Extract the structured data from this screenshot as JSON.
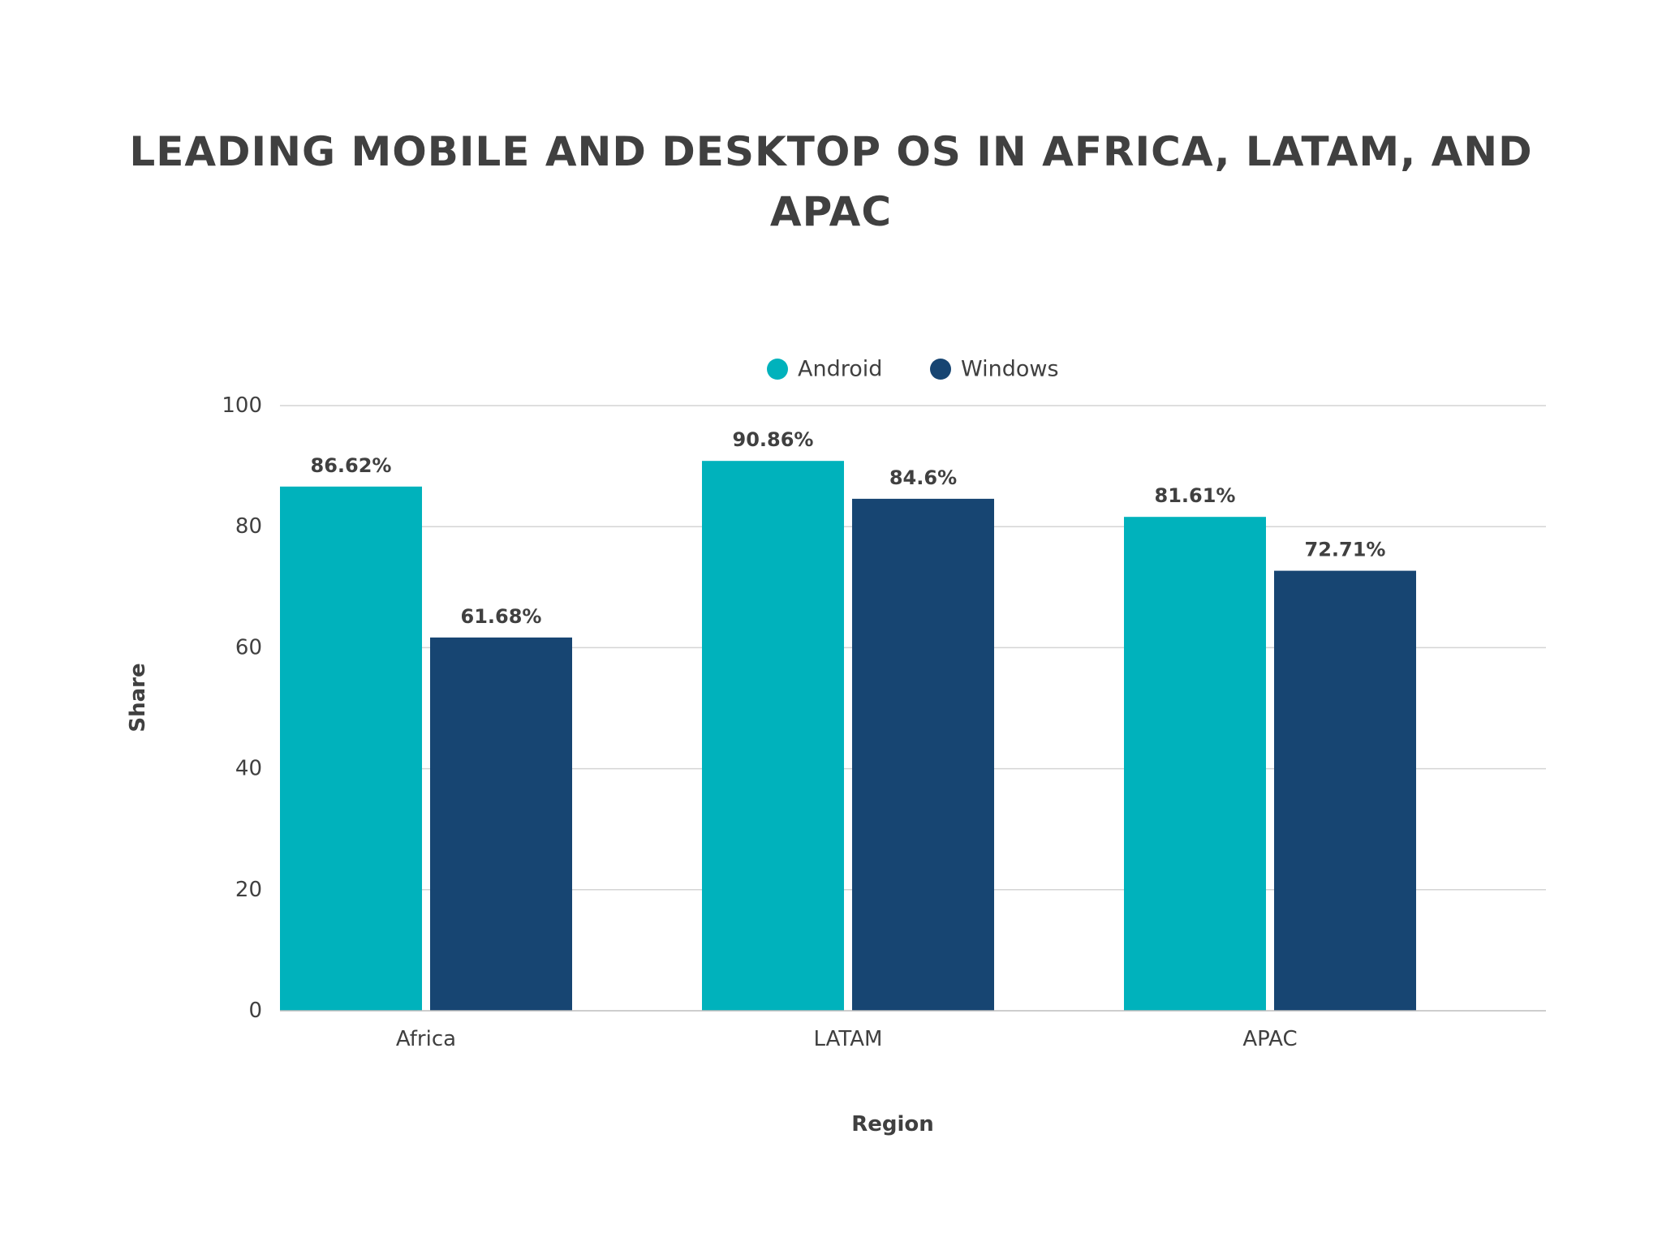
{
  "chart_data": {
    "type": "bar",
    "title_lines": [
      "LEADING MOBILE AND DESKTOP OS IN AFRICA, LATAM, AND",
      "APAC"
    ],
    "xlabel": "Region",
    "ylabel": "Share",
    "categories": [
      "Africa",
      "LATAM",
      "APAC"
    ],
    "series": [
      {
        "name": "Android",
        "color": "#00b2bc",
        "values": [
          86.62,
          90.86,
          81.61
        ],
        "labels": [
          "86.62%",
          "90.86%",
          "81.61%"
        ]
      },
      {
        "name": "Windows",
        "color": "#174572",
        "values": [
          61.68,
          84.6,
          72.71
        ],
        "labels": [
          "61.68%",
          "84.6%",
          "72.71%"
        ]
      }
    ],
    "ylim": [
      0,
      100
    ],
    "yticks": [
      0,
      20,
      40,
      60,
      80,
      100
    ],
    "grid": true,
    "legend_position": "top-center"
  }
}
